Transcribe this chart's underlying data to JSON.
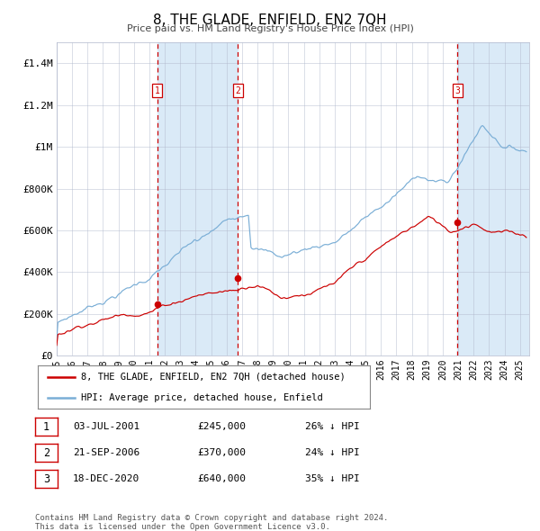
{
  "title": "8, THE GLADE, ENFIELD, EN2 7QH",
  "subtitle": "Price paid vs. HM Land Registry's House Price Index (HPI)",
  "ylim": [
    0,
    1500000
  ],
  "yticks": [
    0,
    200000,
    400000,
    600000,
    800000,
    1000000,
    1200000,
    1400000
  ],
  "ytick_labels": [
    "£0",
    "£200K",
    "£400K",
    "£600K",
    "£800K",
    "£1M",
    "£1.2M",
    "£1.4M"
  ],
  "x_start_year": 1995,
  "x_end_year": 2025,
  "sale_dates": [
    2001.52,
    2006.73,
    2020.96
  ],
  "sale_prices": [
    245000,
    370000,
    640000
  ],
  "sale_labels": [
    "1",
    "2",
    "3"
  ],
  "legend_red": "8, THE GLADE, ENFIELD, EN2 7QH (detached house)",
  "legend_blue": "HPI: Average price, detached house, Enfield",
  "table_rows": [
    [
      "1",
      "03-JUL-2001",
      "£245,000",
      "26% ↓ HPI"
    ],
    [
      "2",
      "21-SEP-2006",
      "£370,000",
      "24% ↓ HPI"
    ],
    [
      "3",
      "18-DEC-2020",
      "£640,000",
      "35% ↓ HPI"
    ]
  ],
  "footer": "Contains HM Land Registry data © Crown copyright and database right 2024.\nThis data is licensed under the Open Government Licence v3.0.",
  "red_color": "#cc0000",
  "blue_color": "#7aaed6",
  "shade_color": "#daeaf7",
  "grid_color": "#b0b8cc",
  "bg_color": "#ffffff"
}
